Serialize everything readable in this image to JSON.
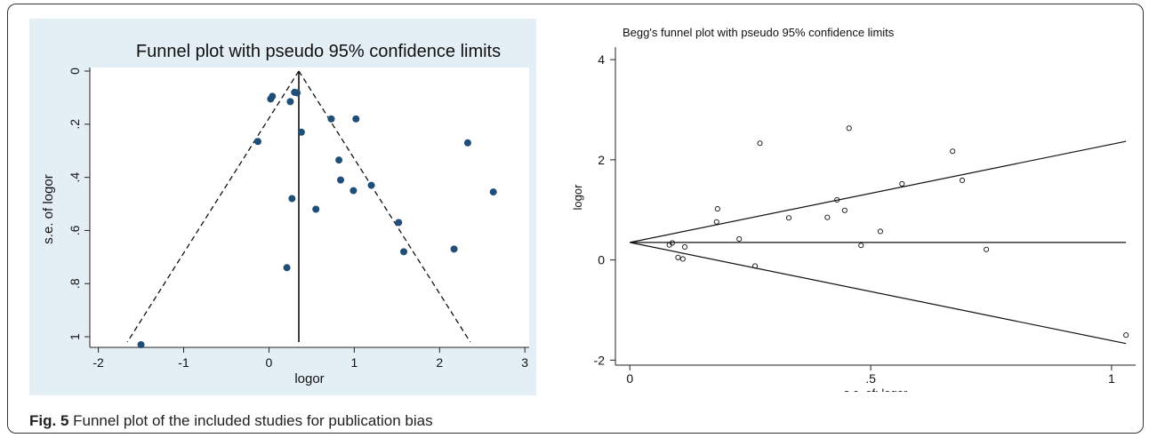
{
  "caption": {
    "label": "Fig. 5",
    "text": " Funnel plot of the included studies for publication bias"
  },
  "chart_data": [
    {
      "type": "scatter",
      "title": "Funnel plot with pseudo 95% confidence limits",
      "xlabel": "logor",
      "ylabel": "s.e. of logor",
      "xlim": [
        -2.1,
        3.05
      ],
      "ylim": [
        0,
        1.04
      ],
      "y_reversed": true,
      "x_ticks": [
        "-2",
        "-1",
        "0",
        "1",
        "2",
        "3"
      ],
      "y_ticks": [
        "0",
        ".2",
        ".4",
        ".6",
        ".8",
        "1"
      ],
      "pooled_estimate": 0.35,
      "funnel": {
        "apex": [
          0.35,
          0
        ],
        "left_base": [
          -1.66,
          1.02
        ],
        "right_base": [
          2.36,
          1.02
        ]
      },
      "colors": {
        "background": "#e4eef5",
        "point": "#1f4e79"
      },
      "x": [
        0.02,
        0.04,
        0.25,
        0.3,
        0.33,
        0.73,
        1.02,
        -0.13,
        0.38,
        0.82,
        0.84,
        0.99,
        1.2,
        2.33,
        2.63,
        0.27,
        0.55,
        1.52,
        1.58,
        2.17,
        0.21,
        -1.5
      ],
      "y": [
        0.105,
        0.095,
        0.115,
        0.08,
        0.082,
        0.18,
        0.18,
        0.265,
        0.23,
        0.335,
        0.41,
        0.45,
        0.43,
        0.27,
        0.455,
        0.48,
        0.52,
        0.57,
        0.68,
        0.67,
        0.74,
        1.03
      ]
    },
    {
      "type": "scatter",
      "title": "Begg's funnel plot with pseudo 95% confidence limits",
      "xlabel": "s.e. of: logor",
      "ylabel": "logor",
      "xlim": [
        -0.03,
        1.05
      ],
      "ylim": [
        -2.1,
        4.25
      ],
      "x_ticks": [
        "0",
        ".5",
        "1"
      ],
      "y_ticks": [
        "-2",
        "0",
        "2",
        "4"
      ],
      "pooled_estimate": 0.35,
      "limit_slope": 1.96,
      "line_x_max": 1.03,
      "x": [
        0.082,
        0.088,
        0.1,
        0.11,
        0.114,
        0.18,
        0.182,
        0.227,
        0.26,
        0.27,
        0.33,
        0.41,
        0.43,
        0.446,
        0.455,
        0.48,
        0.52,
        0.565,
        0.67,
        0.69,
        0.74,
        1.03
      ],
      "y": [
        0.3,
        0.34,
        0.05,
        0.02,
        0.26,
        0.76,
        1.02,
        0.42,
        -0.12,
        2.33,
        0.84,
        0.85,
        1.2,
        0.99,
        2.63,
        0.29,
        0.57,
        1.52,
        2.17,
        1.59,
        0.21,
        -1.5
      ]
    }
  ]
}
